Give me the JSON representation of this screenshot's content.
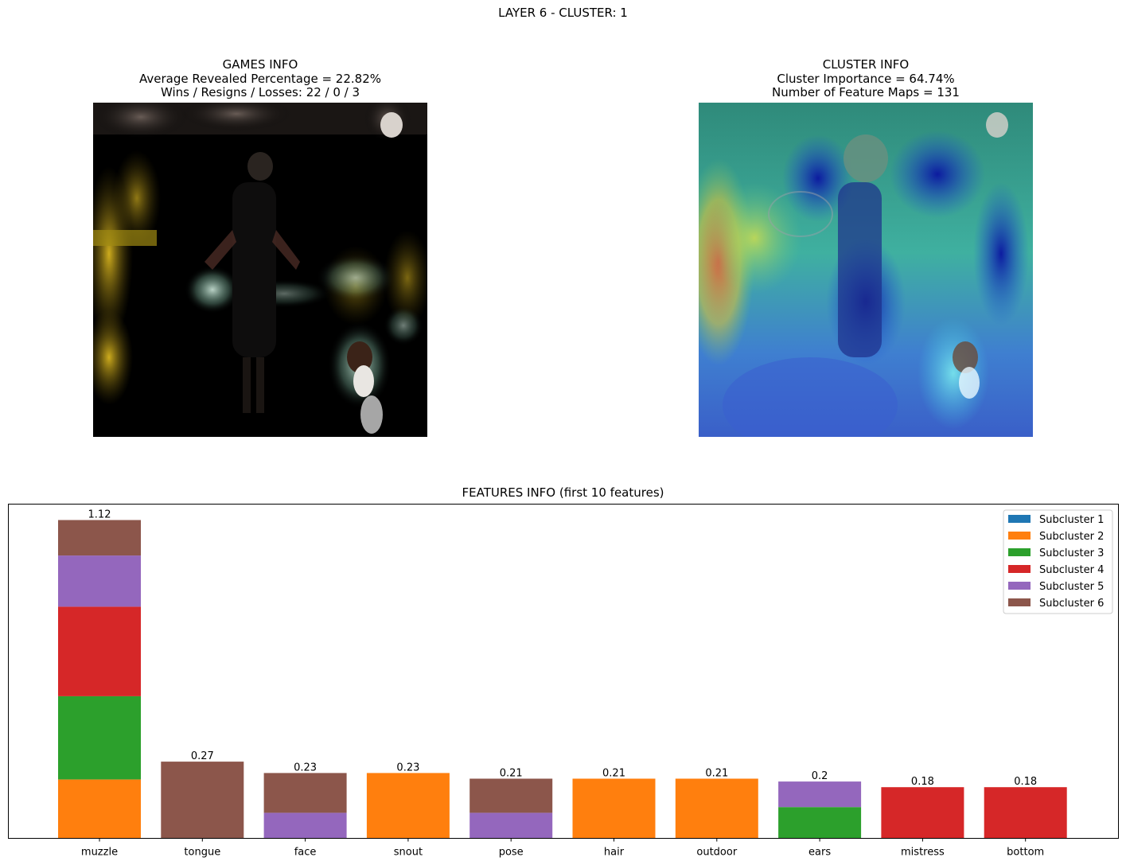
{
  "suptitle": "LAYER 6 - CLUSTER: 1",
  "left_panel": {
    "lines": [
      "GAMES INFO",
      "Average Revealed Percentage = 22.82%",
      "Wins / Resigns / Losses: 22 / 0 / 3"
    ]
  },
  "right_panel": {
    "lines": [
      "CLUSTER INFO",
      "Cluster Importance = 64.74%",
      "Number of Feature Maps = 131"
    ]
  },
  "chart_data": {
    "type": "bar",
    "stacked": true,
    "title": "FEATURES INFO (first 10 features)",
    "categories": [
      "muzzle",
      "tongue",
      "face",
      "snout",
      "pose",
      "hair",
      "outdoor",
      "ears",
      "mistress",
      "bottom"
    ],
    "totals": [
      "1.12",
      "0.27",
      "0.23",
      "0.23",
      "0.21",
      "0.21",
      "0.21",
      "0.2",
      "0.18",
      "0.18"
    ],
    "series": [
      {
        "name": "Subcluster 1",
        "color": "#1f77b4",
        "values": [
          0,
          0,
          0,
          0,
          0,
          0,
          0,
          0,
          0,
          0
        ]
      },
      {
        "name": "Subcluster 2",
        "color": "#ff7f0e",
        "values": [
          0.207,
          0,
          0,
          0.23,
          0,
          0.21,
          0.21,
          0,
          0,
          0
        ]
      },
      {
        "name": "Subcluster 3",
        "color": "#2ca02c",
        "values": [
          0.293,
          0,
          0,
          0,
          0,
          0,
          0,
          0.11,
          0,
          0
        ]
      },
      {
        "name": "Subcluster 4",
        "color": "#d62728",
        "values": [
          0.315,
          0,
          0,
          0,
          0,
          0,
          0,
          0,
          0.18,
          0.18
        ]
      },
      {
        "name": "Subcluster 5",
        "color": "#9467bd",
        "values": [
          0.18,
          0,
          0.09,
          0,
          0.09,
          0,
          0,
          0.09,
          0,
          0
        ]
      },
      {
        "name": "Subcluster 6",
        "color": "#8c564b",
        "values": [
          0.125,
          0.27,
          0.14,
          0,
          0.12,
          0,
          0,
          0,
          0,
          0
        ]
      }
    ],
    "ylim": [
      0,
      1.176
    ],
    "yticks": "hidden",
    "legend": "top-right",
    "grid": false
  }
}
